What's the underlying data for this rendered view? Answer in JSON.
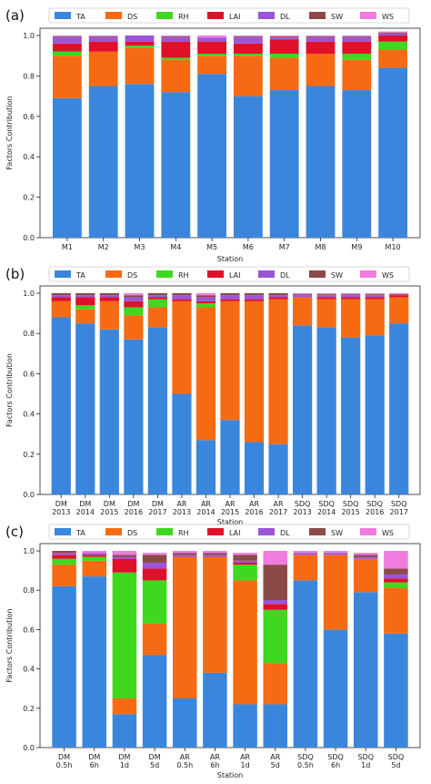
{
  "factor_colors": {
    "TA": "#3a86dd",
    "DS": "#f66b12",
    "RH": "#3fd81e",
    "LAI": "#e0102a",
    "DL": "#9a55d8",
    "SW": "#8b4a48",
    "WS": "#f07ce0"
  },
  "chart_data": [
    {
      "panel_label": "(a)",
      "type": "bar",
      "stacked": true,
      "xlabel": "Station",
      "ylabel": "Factors Contribution",
      "ylim": [
        0,
        1.0
      ],
      "yticks": [
        "0.0",
        "0.2",
        "0.4",
        "0.6",
        "0.8",
        "1.0"
      ],
      "grid": false,
      "legend": "top",
      "categories": [
        "M1",
        "M2",
        "M3",
        "M4",
        "M5",
        "M6",
        "M7",
        "M8",
        "M9",
        "M10"
      ],
      "series": [
        {
          "name": "TA",
          "values": [
            0.69,
            0.75,
            0.76,
            0.72,
            0.81,
            0.7,
            0.73,
            0.75,
            0.73,
            0.84
          ]
        },
        {
          "name": "DS",
          "values": [
            0.21,
            0.17,
            0.18,
            0.16,
            0.09,
            0.2,
            0.16,
            0.16,
            0.15,
            0.09
          ]
        },
        {
          "name": "RH",
          "values": [
            0.02,
            0.0,
            0.01,
            0.01,
            0.01,
            0.01,
            0.02,
            0.0,
            0.03,
            0.04
          ]
        },
        {
          "name": "LAI",
          "values": [
            0.04,
            0.05,
            0.02,
            0.08,
            0.06,
            0.05,
            0.07,
            0.06,
            0.06,
            0.03
          ]
        },
        {
          "name": "DL",
          "values": [
            0.03,
            0.02,
            0.03,
            0.02,
            0.02,
            0.03,
            0.01,
            0.02,
            0.02,
            0.01
          ]
        },
        {
          "name": "SW",
          "values": [
            0.005,
            0.005,
            0.0,
            0.005,
            0.0,
            0.005,
            0.005,
            0.005,
            0.005,
            0.005
          ]
        },
        {
          "name": "WS",
          "values": [
            0.005,
            0.005,
            0.0,
            0.005,
            0.01,
            0.005,
            0.005,
            0.005,
            0.005,
            0.005
          ]
        }
      ]
    },
    {
      "panel_label": "(b)",
      "type": "bar",
      "stacked": true,
      "xlabel": "Station",
      "ylabel": "Factors Contribution",
      "ylim": [
        0,
        1.0
      ],
      "yticks": [
        "0.0",
        "0.2",
        "0.4",
        "0.6",
        "0.8",
        "1.0"
      ],
      "grid": false,
      "legend": "top",
      "categories": [
        "DM\n2013",
        "DM\n2014",
        "DM\n2015",
        "DM\n2016",
        "DM\n2017",
        "AR\n2013",
        "AR\n2014",
        "AR\n2015",
        "AR\n2016",
        "AR\n2017",
        "SDQ\n2013",
        "SDQ\n2014",
        "SDQ\n2015",
        "SDQ\n2016",
        "SDQ\n2017"
      ],
      "series": [
        {
          "name": "TA",
          "values": [
            0.88,
            0.85,
            0.82,
            0.77,
            0.83,
            0.5,
            0.27,
            0.37,
            0.26,
            0.25,
            0.84,
            0.83,
            0.78,
            0.79,
            0.85
          ]
        },
        {
          "name": "DS",
          "values": [
            0.08,
            0.07,
            0.14,
            0.12,
            0.1,
            0.46,
            0.66,
            0.59,
            0.7,
            0.72,
            0.14,
            0.14,
            0.19,
            0.18,
            0.13
          ]
        },
        {
          "name": "RH",
          "values": [
            0.0,
            0.02,
            0.0,
            0.04,
            0.04,
            0.0,
            0.02,
            0.0,
            0.0,
            0.0,
            0.0,
            0.0,
            0.0,
            0.0,
            0.0
          ]
        },
        {
          "name": "LAI",
          "values": [
            0.02,
            0.04,
            0.02,
            0.03,
            0.01,
            0.01,
            0.01,
            0.01,
            0.01,
            0.01,
            0.0,
            0.01,
            0.01,
            0.01,
            0.01
          ]
        },
        {
          "name": "DL",
          "values": [
            0.01,
            0.01,
            0.01,
            0.02,
            0.01,
            0.02,
            0.02,
            0.02,
            0.02,
            0.01,
            0.01,
            0.01,
            0.01,
            0.01,
            0.0
          ]
        },
        {
          "name": "SW",
          "values": [
            0.01,
            0.01,
            0.01,
            0.01,
            0.01,
            0.01,
            0.01,
            0.01,
            0.01,
            0.01,
            0.005,
            0.005,
            0.005,
            0.005,
            0.005
          ]
        },
        {
          "name": "WS",
          "values": [
            0.0,
            0.0,
            0.0,
            0.01,
            0.0,
            0.0,
            0.01,
            0.0,
            0.0,
            0.0,
            0.005,
            0.005,
            0.005,
            0.005,
            0.005
          ]
        }
      ]
    },
    {
      "panel_label": "(c)",
      "type": "bar",
      "stacked": true,
      "xlabel": "Station",
      "ylabel": "Factors Contribution",
      "ylim": [
        0,
        1.0
      ],
      "yticks": [
        "0.0",
        "0.2",
        "0.4",
        "0.6",
        "0.8",
        "1.0"
      ],
      "grid": false,
      "legend": "top",
      "categories": [
        "DM\n0.5h",
        "DM\n6h",
        "DM\n1d",
        "DM\n5d",
        "AR\n0.5h",
        "AR\n6h",
        "AR\n1d",
        "AR\n5d",
        "SDQ\n0.5h",
        "SDQ\n6h",
        "SDQ\n1d",
        "SDQ\n5d"
      ],
      "series": [
        {
          "name": "TA",
          "values": [
            0.82,
            0.87,
            0.17,
            0.47,
            0.25,
            0.38,
            0.22,
            0.22,
            0.85,
            0.6,
            0.79,
            0.58
          ]
        },
        {
          "name": "DS",
          "values": [
            0.11,
            0.08,
            0.08,
            0.16,
            0.72,
            0.59,
            0.63,
            0.21,
            0.13,
            0.38,
            0.17,
            0.23
          ]
        },
        {
          "name": "RH",
          "values": [
            0.03,
            0.02,
            0.64,
            0.22,
            0.0,
            0.0,
            0.08,
            0.27,
            0.0,
            0.0,
            0.0,
            0.03
          ]
        },
        {
          "name": "LAI",
          "values": [
            0.02,
            0.01,
            0.07,
            0.06,
            0.0,
            0.0,
            0.01,
            0.03,
            0.0,
            0.0,
            0.0,
            0.02
          ]
        },
        {
          "name": "DL",
          "values": [
            0.01,
            0.01,
            0.01,
            0.03,
            0.01,
            0.01,
            0.01,
            0.02,
            0.01,
            0.01,
            0.01,
            0.02
          ]
        },
        {
          "name": "SW",
          "values": [
            0.01,
            0.0,
            0.01,
            0.04,
            0.01,
            0.01,
            0.03,
            0.18,
            0.0,
            0.0,
            0.01,
            0.03
          ]
        },
        {
          "name": "WS",
          "values": [
            0.0,
            0.01,
            0.02,
            0.01,
            0.01,
            0.01,
            0.01,
            0.07,
            0.01,
            0.01,
            0.01,
            0.09
          ]
        }
      ]
    }
  ]
}
